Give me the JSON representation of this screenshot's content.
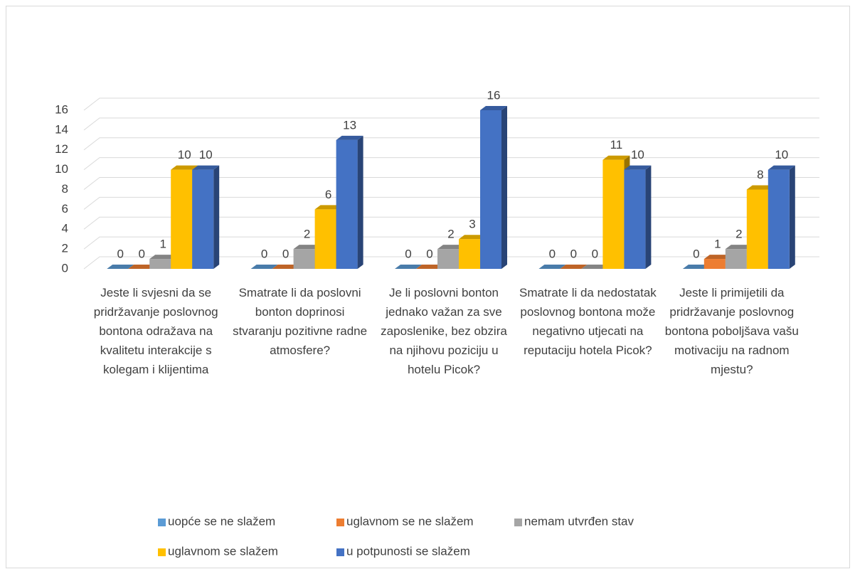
{
  "chart_data": {
    "type": "bar3d",
    "categories": [
      "Jeste li svjesni da se pridržavanje poslovnog bontona odražava na kvalitetu interakcije s kolegam i klijentima",
      "Smatrate li da poslovni bonton doprinosi stvaranju pozitivne radne atmosfere?",
      "Je li poslovni bonton jednako važan za sve zaposlenike, bez obzira na njihovu poziciju u hotelu Picok?",
      "Smatrate li da nedostatak poslovnog bontona može negativno utjecati na reputaciju hotela Picok?",
      "Jeste li primijetili da pridržavanje poslovnog bontona poboljšava vašu motivaciju na radnom mjestu?"
    ],
    "series": [
      {
        "name": "uopće se ne slažem",
        "color": "#5b9bd5",
        "values": [
          0,
          0,
          0,
          0,
          0
        ]
      },
      {
        "name": "uglavnom se ne slažem",
        "color": "#ed7d31",
        "values": [
          0,
          0,
          0,
          0,
          1
        ]
      },
      {
        "name": "nemam utvrđen stav",
        "color": "#a5a5a5",
        "values": [
          1,
          2,
          2,
          0,
          2
        ]
      },
      {
        "name": "uglavnom se slažem",
        "color": "#ffc000",
        "values": [
          10,
          6,
          3,
          11,
          8
        ]
      },
      {
        "name": "u potpunosti se slažem",
        "color": "#4472c4",
        "values": [
          10,
          13,
          16,
          10,
          10
        ]
      }
    ],
    "ylim": [
      0,
      16
    ],
    "yticks": [
      0,
      2,
      4,
      6,
      8,
      10,
      12,
      14,
      16
    ],
    "grid": true,
    "legend": "bottom"
  }
}
